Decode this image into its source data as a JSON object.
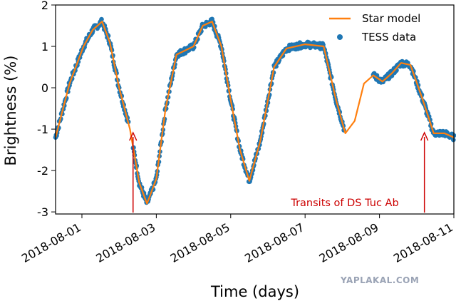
{
  "chart_data": {
    "type": "scatter",
    "title": "",
    "xlabel": "Time (days)",
    "ylabel": "Brightness (%)",
    "xlim": [
      "2018-07-31T07:00",
      "2018-08-11T00:00"
    ],
    "ylim": [
      -3.05,
      2.0
    ],
    "x_ticks": [
      "2018-08-01",
      "2018-08-03",
      "2018-08-05",
      "2018-08-07",
      "2018-08-09",
      "2018-08-11"
    ],
    "y_ticks": [
      -3,
      -2,
      -1,
      0,
      1,
      2
    ],
    "legend": {
      "position": "top-right",
      "entries": [
        "Star model",
        "TESS data"
      ]
    },
    "colors": {
      "model": "#ff7f0e",
      "data": "#1f77b4",
      "annotation": "#cc0000"
    },
    "series": [
      {
        "name": "Star model",
        "kind": "line",
        "x": [
          "2018-07-31T07:00",
          "2018-07-31T16:00",
          "2018-08-01T01:00",
          "2018-08-01T07:00",
          "2018-08-01T13:00",
          "2018-08-01T18:00",
          "2018-08-02T00:00",
          "2018-08-02T07:00",
          "2018-08-02T13:00",
          "2018-08-02T18:00",
          "2018-08-03T00:00",
          "2018-08-03T06:00",
          "2018-08-03T13:00",
          "2018-08-04T00:00",
          "2018-08-04T06:00",
          "2018-08-04T12:00",
          "2018-08-04T18:00",
          "2018-08-05T00:00",
          "2018-08-05T06:00",
          "2018-08-05T12:00",
          "2018-08-05T19:00",
          "2018-08-06T04:00",
          "2018-08-06T12:00",
          "2018-08-07T00:00",
          "2018-08-07T12:00",
          "2018-08-07T20:00",
          "2018-08-08T02:00",
          "2018-08-08T08:00",
          "2018-08-08T14:00",
          "2018-08-08T20:00",
          "2018-08-09T02:00",
          "2018-08-09T08:00",
          "2018-08-09T14:00",
          "2018-08-09T20:00",
          "2018-08-10T04:00",
          "2018-08-10T11:00",
          "2018-08-10T18:00",
          "2018-08-11T00:00"
        ],
        "values": [
          -1.2,
          0.1,
          1.0,
          1.4,
          1.6,
          1.1,
          0.0,
          -1.0,
          -2.3,
          -2.8,
          -2.2,
          -0.5,
          0.8,
          1.0,
          1.5,
          1.6,
          1.0,
          -0.3,
          -1.5,
          -2.25,
          -1.3,
          0.5,
          0.95,
          1.05,
          1.0,
          -0.3,
          -1.1,
          -0.8,
          0.1,
          0.3,
          0.15,
          0.35,
          0.6,
          0.55,
          -0.3,
          -1.1,
          -1.1,
          -1.2
        ]
      },
      {
        "name": "TESS data",
        "kind": "scatter",
        "segments": [
          [
            "2018-07-31T07:00",
            "2018-08-02T06:00"
          ],
          [
            "2018-08-02T09:00",
            "2018-08-08T01:00"
          ],
          [
            "2018-08-08T20:00",
            "2018-08-11T00:00"
          ]
        ]
      }
    ],
    "annotations": [
      {
        "text": "Transits of DS Tuc Ab",
        "arrows_at": [
          "2018-08-02T09:00",
          "2018-08-10T05:00"
        ]
      }
    ]
  },
  "watermark": "YAPLAKAL.COM"
}
